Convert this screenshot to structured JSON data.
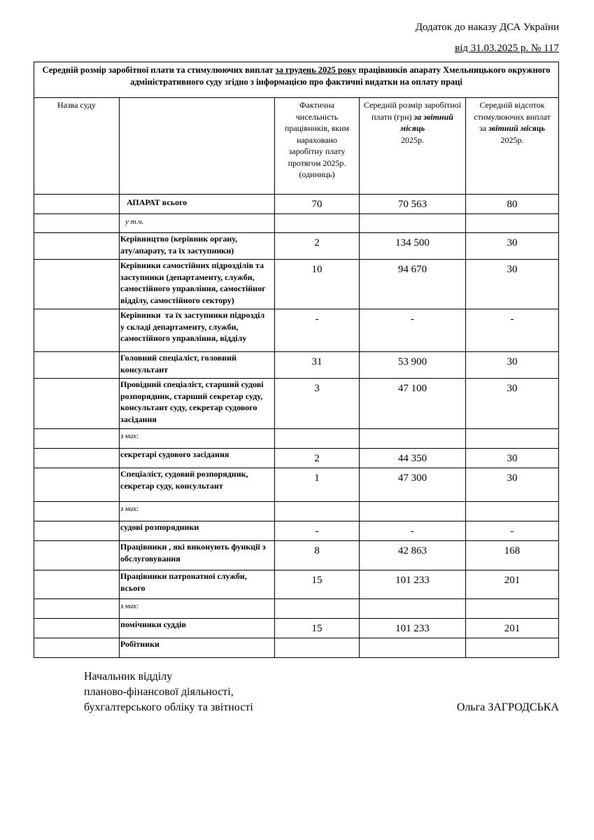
{
  "header": {
    "line1": "Додаток до наказу ДСА України",
    "line2": "від 31.03.2025 р. № 117"
  },
  "table": {
    "title_part1": "Середній розмір заробітної плати та стимулюючих виплат ",
    "title_underlined": "за грудень 2025 року",
    "title_part2": "  працівників апарату Хмельницького окружного адміністративного суду згідно з інформацією про фактичні видатки на оплату праці",
    "col_headers": {
      "name": "Назва суду",
      "count": "Фактична чисельність працівників, яким нараховано заробітну плату протягом 2025р.(одиниць)",
      "salary_a": "Середній розмір заробітної плати (грн) ",
      "salary_b": "за звітний місяць",
      "salary_c": "2025р.",
      "bonus_a": "Середній відсоток стимулюючих виплат за ",
      "bonus_b": "звітний місяць",
      "bonus_c": "2025р."
    },
    "rows": [
      {
        "label": "АПАРАТ всього",
        "count": "70",
        "salary": "70 563",
        "bonus": "80"
      },
      {
        "label": "у т.ч.",
        "count": "",
        "salary": "",
        "bonus": ""
      },
      {
        "label": "Керівництво (керівник органу,\nату/апарату, та їх заступники)",
        "count": "2",
        "salary": "134 500",
        "bonus": "30"
      },
      {
        "label": "Керівники самостійних підрозділів та\nзаступники (департаменту, служби,\nсамостійного управління, самостійног\nвідділу, самостійного сектору)",
        "count": "10",
        "salary": "94 670",
        "bonus": "30"
      },
      {
        "label": "Керівники  та їх заступники підрозділ\nу складі департаменту, служби,\nсамостійного управління, відділу",
        "count": "-",
        "salary": "-",
        "bonus": "-"
      },
      {
        "label": "Головний спеціаліст, головний\nконсультант",
        "count": "31",
        "salary": "53 900",
        "bonus": "30"
      },
      {
        "label": "Провідний спеціаліст, старший судові\nрозпорядник, старший секретар суду,\nконсультант суду, секретар судового\nзасідання",
        "count": "3",
        "salary": "47 100",
        "bonus": "30"
      },
      {
        "label": "з них:",
        "count": "",
        "salary": "",
        "bonus": ""
      },
      {
        "label": "секретарі судового засідання",
        "count": "2",
        "salary": "44 350",
        "bonus": "30"
      },
      {
        "label": "Спеціаліст, судовий розпорядник,\nсекретар суду, консультант",
        "count": "1",
        "salary": "47 300",
        "bonus": "30"
      },
      {
        "label": "з них:",
        "count": "",
        "salary": "",
        "bonus": ""
      },
      {
        "label": "судові розпорядники",
        "count": "-",
        "salary": "-",
        "bonus": "-"
      },
      {
        "label": "Працівники , які виконують функції з\nобслуговування",
        "count": "8",
        "salary": "42 863",
        "bonus": "168"
      },
      {
        "label": "Працівники патронатної служби,\nвсього",
        "count": "15",
        "salary": "101 233",
        "bonus": "201"
      },
      {
        "label": "з них:",
        "count": "",
        "salary": "",
        "bonus": ""
      },
      {
        "label": "помічники суддів",
        "count": "15",
        "salary": "101 233",
        "bonus": "201"
      },
      {
        "label": "Робітники",
        "count": "",
        "salary": "",
        "bonus": ""
      }
    ]
  },
  "signature": {
    "line1": "Начальник відділу",
    "line2": "планово-фінансової діяльності,",
    "line3": "бухгалтерського обліку та звітності",
    "name": "Ольга ЗАГРОДСЬКА"
  }
}
